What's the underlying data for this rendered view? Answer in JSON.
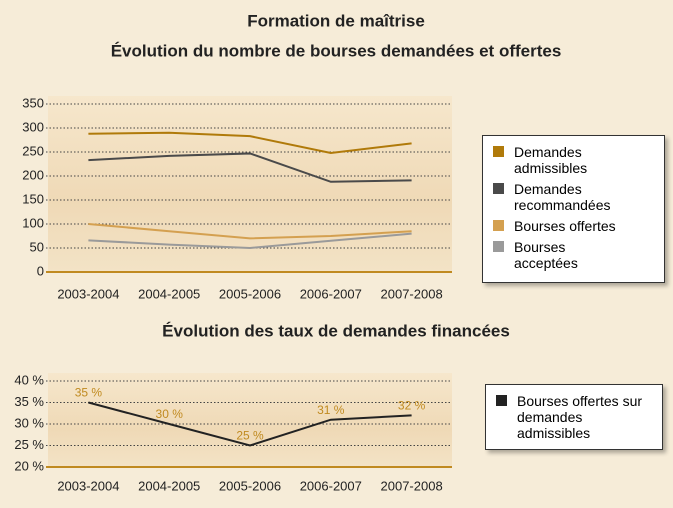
{
  "chart_data": [
    {
      "type": "line",
      "title": "Formation de maîtrise",
      "subtitle": "Évolution du nombre de bourses demandées et offertes",
      "categories": [
        "2003-2004",
        "2004-2005",
        "2005-2006",
        "2006-2007",
        "2007-2008"
      ],
      "series": [
        {
          "name": "Demandes admissibles",
          "color": "#b07a0a",
          "values": [
            288,
            290,
            283,
            248,
            268
          ]
        },
        {
          "name": "Demandes recommandées",
          "color": "#4a4a4a",
          "values": [
            233,
            242,
            247,
            188,
            191
          ]
        },
        {
          "name": "Bourses offertes",
          "color": "#d4a050",
          "values": [
            100,
            85,
            70,
            75,
            85
          ]
        },
        {
          "name": "Bourses acceptées",
          "color": "#9a9a9a",
          "values": [
            66,
            57,
            50,
            65,
            80
          ]
        }
      ],
      "ylim": [
        0,
        350
      ],
      "yticks": [
        0,
        50,
        100,
        150,
        200,
        250,
        300,
        350
      ],
      "grid": true,
      "legend": "right"
    },
    {
      "type": "line",
      "title": "Évolution des taux de demandes financées",
      "categories": [
        "2003-2004",
        "2004-2005",
        "2005-2006",
        "2006-2007",
        "2007-2008"
      ],
      "series": [
        {
          "name": "Bourses offertes sur demandes admissibles",
          "color": "#222222",
          "values": [
            35,
            30,
            25,
            31,
            32
          ],
          "value_labels": [
            "35 %",
            "30 %",
            "25 %",
            "31 %",
            "32 %"
          ]
        }
      ],
      "ylim": [
        20,
        40
      ],
      "yticks": [
        {
          "value": 20,
          "label": "20 %"
        },
        {
          "value": 25,
          "label": "25 %"
        },
        {
          "value": 30,
          "label": "30 %"
        },
        {
          "value": 35,
          "label": "35 %"
        },
        {
          "value": 40,
          "label": "40 %"
        }
      ],
      "grid": true,
      "legend": "right"
    }
  ]
}
